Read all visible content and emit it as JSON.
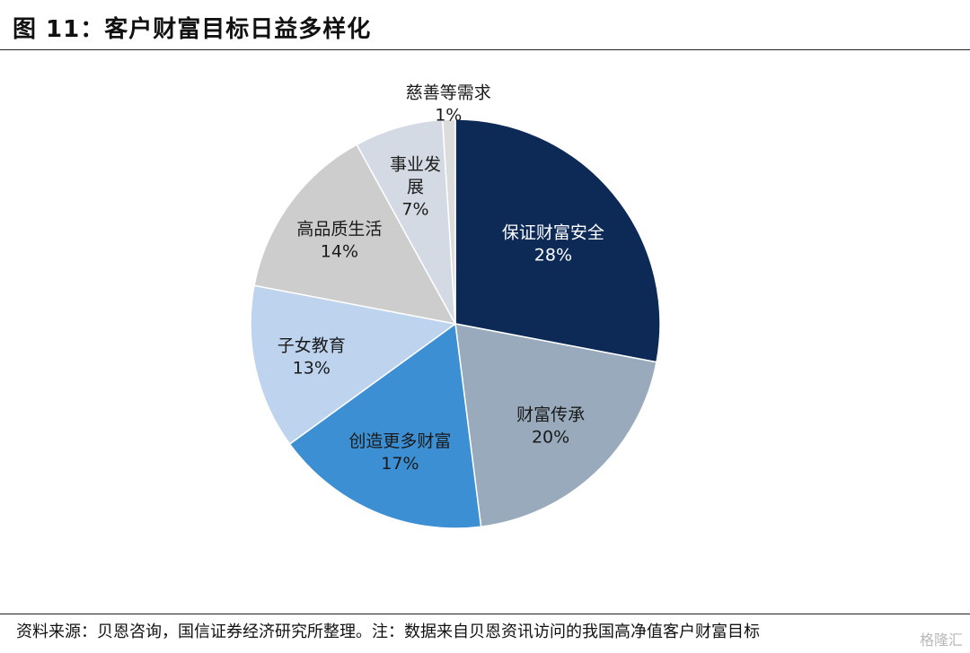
{
  "header": {
    "title": "图 11：客户财富目标日益多样化"
  },
  "footer": {
    "source": "资料来源：贝恩咨询，国信证券经济研究所整理。注：数据来自贝恩资讯访问的我国高净值客户财富目标",
    "watermark": "格隆汇"
  },
  "chart_data": {
    "type": "pie",
    "slices": [
      {
        "label": "保证财富安全",
        "value": 28,
        "value_label": "28%",
        "color": "#0d2a57"
      },
      {
        "label": "财富传承",
        "value": 20,
        "value_label": "20%",
        "color": "#98aabb"
      },
      {
        "label": "创造更多财富",
        "value": 17,
        "value_label": "17%",
        "color": "#3d8fd3"
      },
      {
        "label": "子女教育",
        "value": 13,
        "value_label": "13%",
        "color": "#bdd3ee"
      },
      {
        "label": "高品质生活",
        "value": 14,
        "value_label": "14%",
        "color": "#cdcdcd"
      },
      {
        "label": "事业发展",
        "value": 7,
        "value_label": "7%",
        "color": "#d3dae3"
      },
      {
        "label": "慈善等需求",
        "value": 1,
        "value_label": "1%",
        "color": "#dcdcdc"
      }
    ]
  }
}
